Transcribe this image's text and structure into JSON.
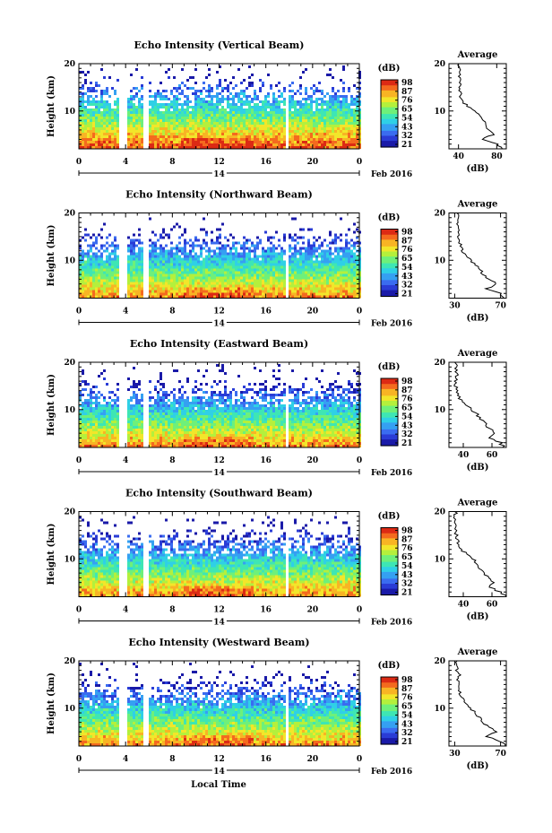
{
  "figure": {
    "date_label": "Feb 2016",
    "day_label": "14",
    "xlabel": "Local Time",
    "colorbar_label": "(dB)",
    "average_title": "Average",
    "average_xlabel": "(dB)"
  },
  "colormap": [
    "#1a1aa8",
    "#2a3cd6",
    "#3a6cf0",
    "#35a0f2",
    "#2fd0e6",
    "#3ee6b4",
    "#6ef07a",
    "#b4f03c",
    "#f2e62a",
    "#f8b424",
    "#f46a1e",
    "#dc2a14"
  ],
  "chart_data": [
    {
      "type": "heatmap",
      "title": "Echo Intensity (Vertical Beam)",
      "xlabel": "Local Time",
      "ylabel": "Height (km)",
      "xlim": [
        0,
        24
      ],
      "ylim": [
        2,
        20
      ],
      "xticks": [
        "0",
        "4",
        "8",
        "12",
        "16",
        "20",
        "0"
      ],
      "yticks": [
        "10",
        "20"
      ],
      "colorbar": {
        "ticks": [
          "98",
          "87",
          "76",
          "65",
          "54",
          "43",
          "32",
          "21"
        ],
        "range": [
          21,
          98
        ]
      },
      "gaps": [
        [
          3.4,
          4.2
        ],
        [
          5.5,
          5.9
        ],
        [
          17.6,
          17.9
        ]
      ],
      "top_limit_km": 19.5,
      "average": {
        "xticks": [
          "40",
          "80"
        ],
        "xlim": [
          30,
          90
        ],
        "ylim": [
          2,
          20
        ],
        "yticks": [
          "10",
          "20"
        ],
        "height_km": [
          2,
          3,
          4,
          5,
          6,
          7,
          8,
          9,
          10,
          11,
          12,
          13,
          14,
          15,
          16,
          17,
          18,
          19,
          20
        ],
        "value_db": [
          86,
          80,
          64,
          76,
          72,
          68,
          66,
          62,
          56,
          50,
          44,
          42,
          42,
          41,
          42,
          42,
          40,
          42,
          40
        ]
      }
    },
    {
      "type": "heatmap",
      "title": "Echo Intensity (Northward Beam)",
      "xlabel": "Local Time",
      "ylabel": "Height (km)",
      "xlim": [
        0,
        24
      ],
      "ylim": [
        2,
        20
      ],
      "xticks": [
        "0",
        "4",
        "8",
        "12",
        "16",
        "20",
        "0"
      ],
      "yticks": [
        "10",
        "20"
      ],
      "colorbar": {
        "ticks": [
          "98",
          "87",
          "76",
          "65",
          "54",
          "43",
          "32",
          "21"
        ],
        "range": [
          21,
          98
        ]
      },
      "gaps": [
        [
          3.4,
          4.2
        ],
        [
          5.5,
          5.9
        ],
        [
          17.6,
          17.9
        ]
      ],
      "top_limit_km": 17,
      "average": {
        "xticks": [
          "30",
          "70"
        ],
        "xlim": [
          25,
          75
        ],
        "ylim": [
          2,
          20
        ],
        "yticks": [
          "10",
          "20"
        ],
        "height_km": [
          2,
          3,
          4,
          5,
          6,
          7,
          8,
          9,
          10,
          11,
          12,
          13,
          14,
          15,
          16,
          17,
          18,
          19,
          20
        ],
        "value_db": [
          72,
          70,
          58,
          66,
          60,
          55,
          52,
          48,
          44,
          40,
          37,
          35,
          34,
          33,
          33,
          34,
          32,
          33,
          32
        ]
      }
    },
    {
      "type": "heatmap",
      "title": "Echo Intensity (Eastward Beam)",
      "xlabel": "Local Time",
      "ylabel": "Height (km)",
      "xlim": [
        0,
        24
      ],
      "ylim": [
        2,
        20
      ],
      "xticks": [
        "0",
        "4",
        "8",
        "12",
        "16",
        "20",
        "0"
      ],
      "yticks": [
        "10",
        "20"
      ],
      "colorbar": {
        "ticks": [
          "98",
          "87",
          "76",
          "65",
          "54",
          "43",
          "32",
          "21"
        ],
        "range": [
          21,
          98
        ]
      },
      "gaps": [
        [
          3.4,
          4.2
        ],
        [
          5.5,
          5.9
        ],
        [
          17.6,
          17.9
        ]
      ],
      "top_limit_km": 19,
      "average": {
        "xticks": [
          "40",
          "60"
        ],
        "xlim": [
          30,
          70
        ],
        "ylim": [
          2,
          20
        ],
        "yticks": [
          "10",
          "20"
        ],
        "height_km": [
          2,
          3,
          4,
          5,
          6,
          7,
          8,
          9,
          10,
          11,
          12,
          13,
          14,
          15,
          16,
          17,
          18,
          19,
          20
        ],
        "value_db": [
          68,
          66,
          58,
          62,
          58,
          55,
          52,
          50,
          46,
          42,
          38,
          36,
          36,
          35,
          35,
          36,
          34,
          35,
          34
        ]
      }
    },
    {
      "type": "heatmap",
      "title": "Echo Intensity (Southward Beam)",
      "xlabel": "Local Time",
      "ylabel": "Height (km)",
      "xlim": [
        0,
        24
      ],
      "ylim": [
        2,
        20
      ],
      "xticks": [
        "0",
        "4",
        "8",
        "12",
        "16",
        "20",
        "0"
      ],
      "yticks": [
        "10",
        "20"
      ],
      "colorbar": {
        "ticks": [
          "98",
          "87",
          "76",
          "65",
          "54",
          "43",
          "32",
          "21"
        ],
        "range": [
          21,
          98
        ]
      },
      "gaps": [
        [
          3.4,
          4.2
        ],
        [
          5.5,
          5.9
        ],
        [
          17.6,
          17.9
        ]
      ],
      "top_limit_km": 19,
      "average": {
        "xticks": [
          "40",
          "60"
        ],
        "xlim": [
          30,
          70
        ],
        "ylim": [
          2,
          20
        ],
        "yticks": [
          "10",
          "20"
        ],
        "height_km": [
          2,
          3,
          4,
          5,
          6,
          7,
          8,
          9,
          10,
          11,
          12,
          13,
          14,
          15,
          16,
          17,
          18,
          19,
          20
        ],
        "value_db": [
          69,
          66,
          58,
          62,
          58,
          55,
          52,
          50,
          46,
          42,
          38,
          36,
          36,
          35,
          35,
          36,
          34,
          35,
          34
        ]
      }
    },
    {
      "type": "heatmap",
      "title": "Echo Intensity (Westward Beam)",
      "xlabel": "Local Time",
      "ylabel": "Height (km)",
      "xlim": [
        0,
        24
      ],
      "ylim": [
        2,
        20
      ],
      "xticks": [
        "0",
        "4",
        "8",
        "12",
        "16",
        "20",
        "0"
      ],
      "yticks": [
        "10",
        "20"
      ],
      "colorbar": {
        "ticks": [
          "98",
          "87",
          "76",
          "65",
          "54",
          "43",
          "32",
          "21"
        ],
        "range": [
          21,
          98
        ]
      },
      "gaps": [
        [
          3.4,
          4.2
        ],
        [
          5.5,
          5.9
        ],
        [
          17.6,
          17.9
        ]
      ],
      "top_limit_km": 18,
      "average": {
        "xticks": [
          "30",
          "70"
        ],
        "xlim": [
          25,
          75
        ],
        "ylim": [
          2,
          20
        ],
        "yticks": [
          "10",
          "20"
        ],
        "height_km": [
          2,
          3,
          4,
          5,
          6,
          7,
          8,
          9,
          10,
          11,
          12,
          13,
          14,
          15,
          16,
          17,
          18,
          19,
          20
        ],
        "value_db": [
          74,
          70,
          58,
          66,
          60,
          55,
          52,
          48,
          44,
          40,
          37,
          35,
          34,
          33,
          33,
          34,
          32,
          33,
          32
        ]
      }
    }
  ]
}
